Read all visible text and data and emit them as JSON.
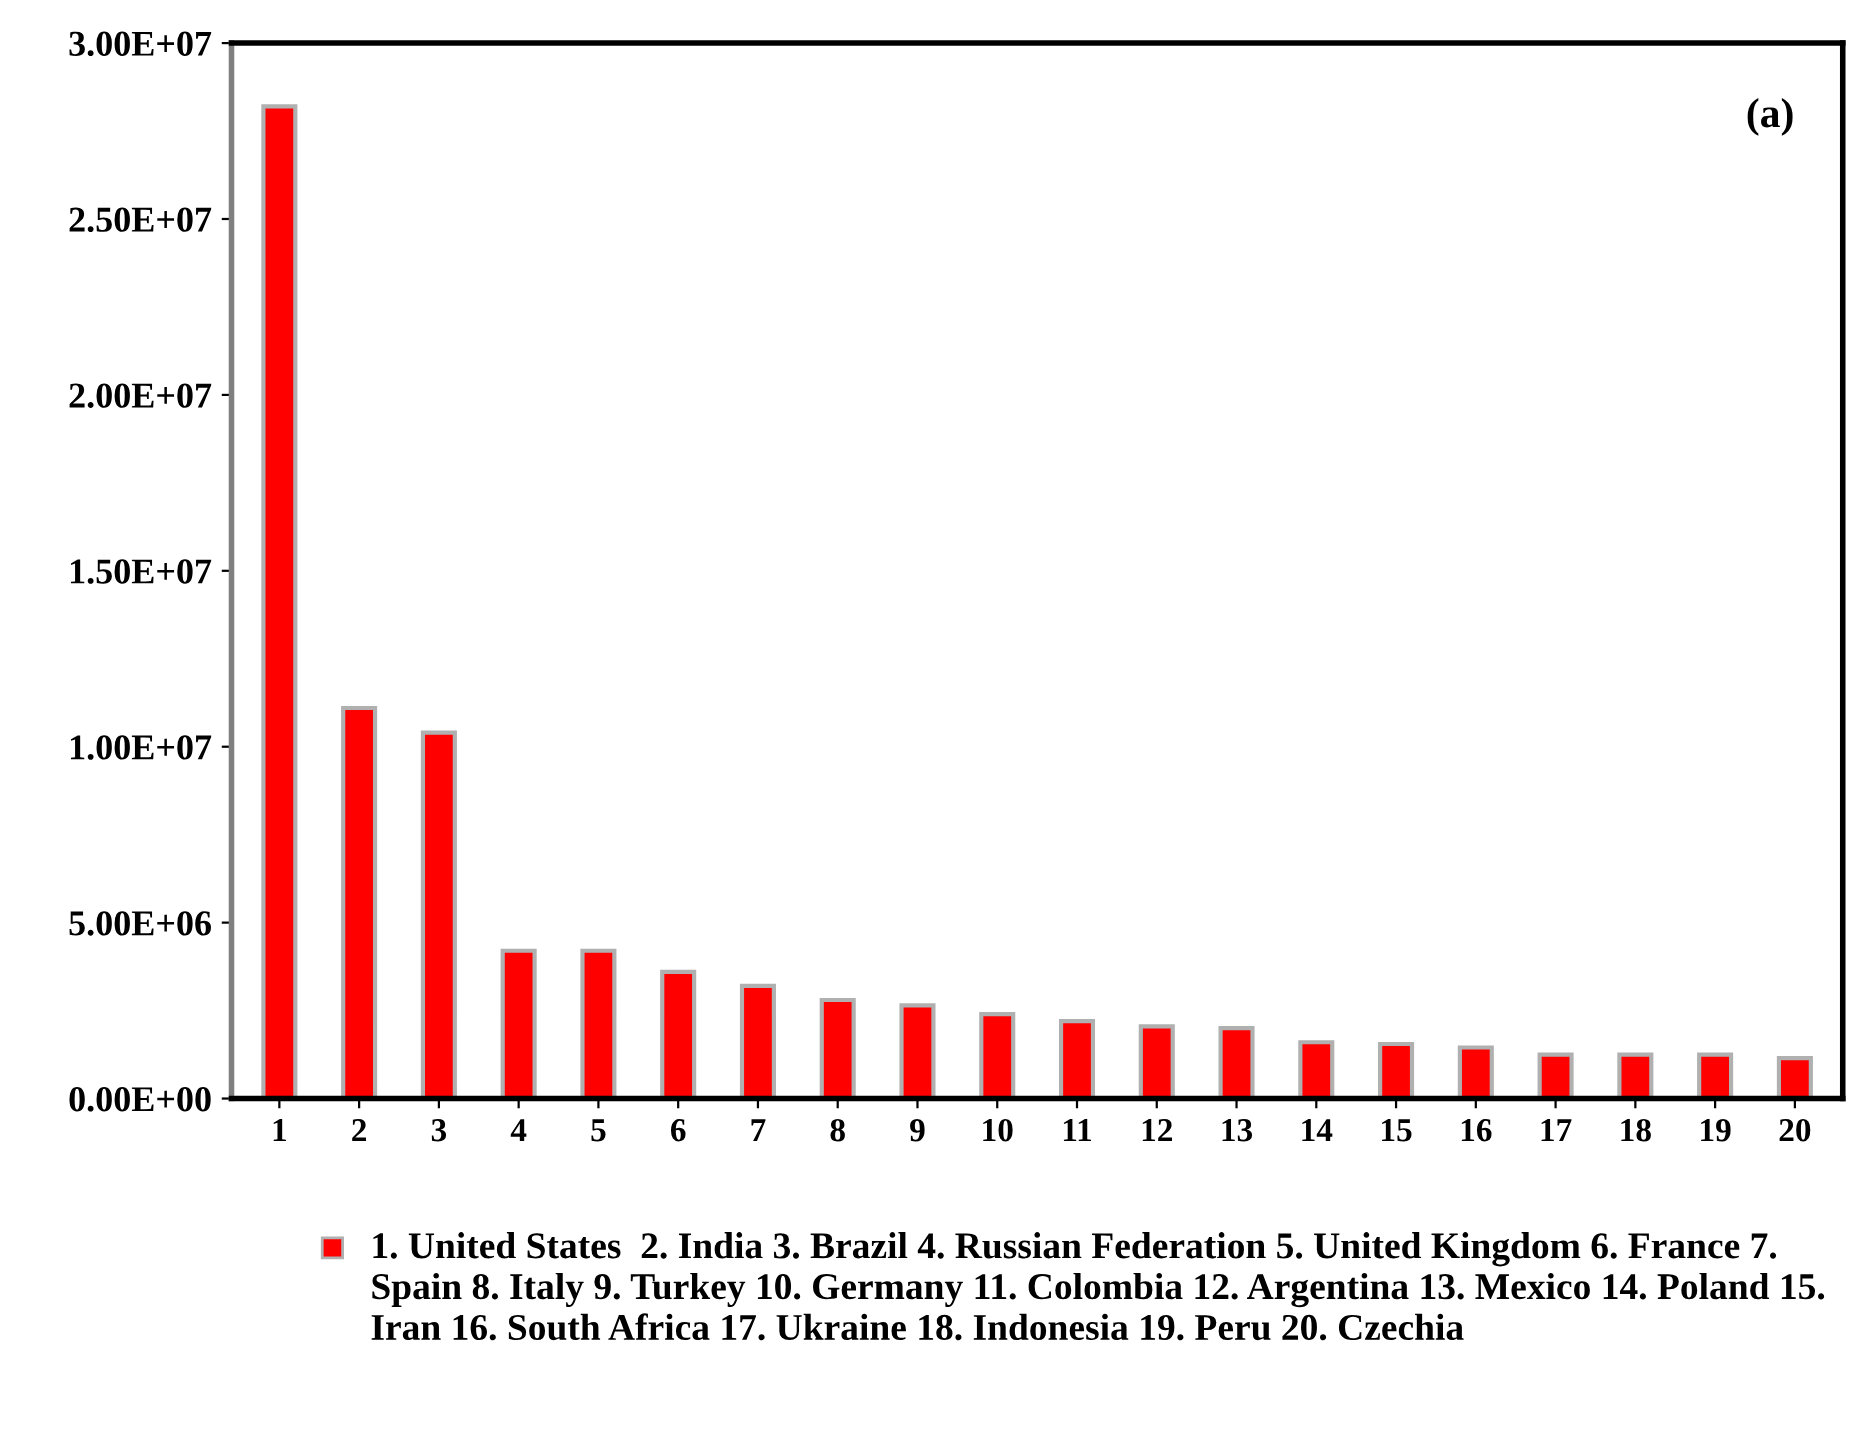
{
  "chart_data": {
    "type": "bar",
    "categories": [
      "1",
      "2",
      "3",
      "4",
      "5",
      "6",
      "7",
      "8",
      "9",
      "10",
      "11",
      "12",
      "13",
      "14",
      "15",
      "16",
      "17",
      "18",
      "19",
      "20"
    ],
    "series": [
      {
        "name": "1. United States  2. India 3. Brazil 4. Russian Federation 5. United Kingdom 6. France 7. Spain 8. Italy 9. Turkey 10. Germany 11. Colombia 12. Argentina 13. Mexico 14. Poland 15. Iran 16. South Africa 17. Ukraine 18. Indonesia 19. Peru 20. Czechia",
        "color": "#ff0000",
        "values": [
          28200000,
          11100000,
          10400000,
          4200000,
          4200000,
          3600000,
          3200000,
          2800000,
          2650000,
          2400000,
          2200000,
          2050000,
          2000000,
          1600000,
          1550000,
          1450000,
          1250000,
          1250000,
          1250000,
          1150000
        ]
      }
    ],
    "ylim": [
      0,
      30000000
    ],
    "yticks": [
      {
        "value": 0,
        "label": "0.00E+00"
      },
      {
        "value": 5000000,
        "label": "5.00E+06"
      },
      {
        "value": 10000000,
        "label": "1.00E+07"
      },
      {
        "value": 15000000,
        "label": "1.50E+07"
      },
      {
        "value": 20000000,
        "label": "2.00E+07"
      },
      {
        "value": 25000000,
        "label": "2.50E+07"
      },
      {
        "value": 30000000,
        "label": "3.00E+07"
      }
    ],
    "annotations": [
      "(a)"
    ],
    "legend": "bottom",
    "grid": false
  }
}
